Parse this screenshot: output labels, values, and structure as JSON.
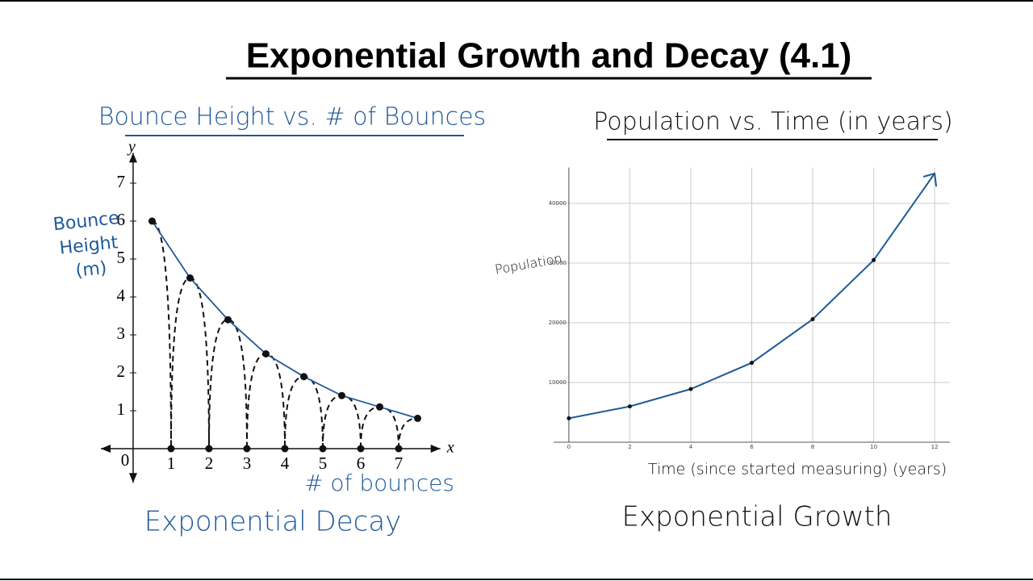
{
  "title": "Exponential Growth and Decay (4.1)",
  "chart_data": [
    {
      "type": "scatter",
      "title": "Bounce Height vs. # of Bounces",
      "x_label": "x",
      "y_label": "y",
      "y_note": "Bounce Height (m)",
      "x_note": "# of bounces",
      "caption": "Exponential Decay",
      "series": [
        {
          "color": "#1f5a9a",
          "x": [
            0.5,
            1.5,
            2.5,
            3.5,
            4.5,
            5.5,
            6.5,
            7.5
          ],
          "values": [
            6,
            4.5,
            3.4,
            2.5,
            1.9,
            1.4,
            1.1,
            0.8
          ]
        },
        {
          "color": "#111111",
          "x": [
            1,
            2,
            3,
            4,
            5,
            6,
            7
          ],
          "values": [
            0,
            0,
            0,
            0,
            0,
            0,
            0
          ]
        }
      ],
      "xlim": [
        -0.85,
        8.1
      ],
      "ylim": [
        -0.9,
        7.8
      ],
      "xticks": [
        0,
        1,
        2,
        3,
        4,
        5,
        6,
        7
      ],
      "yticks": [
        1,
        2,
        3,
        4,
        5,
        6,
        7
      ]
    },
    {
      "type": "line",
      "title": "Population vs. Time (in years)",
      "y_label": "Population",
      "x_label": "Time (since started measuring) (years)",
      "caption": "Exponential Growth",
      "series": [
        {
          "color": "#1f5a9a",
          "x": [
            0,
            2,
            4,
            6,
            8,
            10,
            12
          ],
          "values": [
            4000,
            6000,
            8900,
            13300,
            20600,
            30500,
            45000
          ]
        },
        {
          "color": "#111111",
          "x": [
            0,
            2,
            4,
            6,
            8,
            10
          ],
          "values": [
            4000,
            6000,
            8900,
            13300,
            20600,
            30500
          ]
        }
      ],
      "xlim": [
        -0.5,
        12.5
      ],
      "ylim": [
        0,
        46000
      ],
      "xticks": [
        0,
        2,
        4,
        6,
        8,
        10,
        12
      ],
      "yticks": [
        10000,
        20000,
        30000,
        40000
      ],
      "grid": true
    }
  ]
}
